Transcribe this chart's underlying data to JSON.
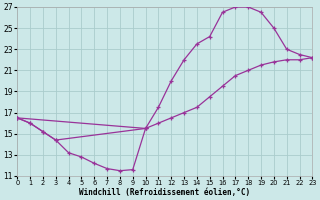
{
  "bg_color": "#cce8e8",
  "grid_color": "#aacccc",
  "line_color": "#993399",
  "xlabel": "Windchill (Refroidissement éolien,°C)",
  "xlim": [
    0,
    23
  ],
  "ylim": [
    11,
    27
  ],
  "xticks": [
    0,
    1,
    2,
    3,
    4,
    5,
    6,
    7,
    8,
    9,
    10,
    11,
    12,
    13,
    14,
    15,
    16,
    17,
    18,
    19,
    20,
    21,
    22,
    23
  ],
  "yticks": [
    11,
    13,
    15,
    17,
    19,
    21,
    23,
    25,
    27
  ],
  "series1_x": [
    0,
    1,
    2,
    3,
    4,
    5,
    6,
    7,
    8,
    9,
    10
  ],
  "series1_y": [
    16.5,
    16.0,
    15.2,
    14.4,
    13.2,
    12.8,
    12.2,
    11.7,
    11.5,
    11.6,
    15.5
  ],
  "series2_x": [
    0,
    1,
    2,
    3,
    10,
    11,
    12,
    13,
    14,
    15,
    16,
    17,
    18,
    19,
    20,
    21,
    22,
    23
  ],
  "series2_y": [
    16.5,
    16.0,
    15.2,
    14.4,
    15.5,
    17.5,
    20.0,
    22.0,
    23.5,
    24.2,
    26.5,
    27.0,
    27.0,
    26.5,
    25.0,
    23.0,
    22.5,
    22.2
  ],
  "series3_x": [
    0,
    10,
    11,
    12,
    13,
    14,
    15,
    16,
    17,
    18,
    19,
    20,
    21,
    22,
    23
  ],
  "series3_y": [
    16.5,
    15.5,
    16.0,
    16.5,
    17.0,
    17.5,
    18.5,
    19.5,
    20.5,
    21.0,
    21.5,
    21.8,
    22.0,
    22.0,
    22.2
  ]
}
